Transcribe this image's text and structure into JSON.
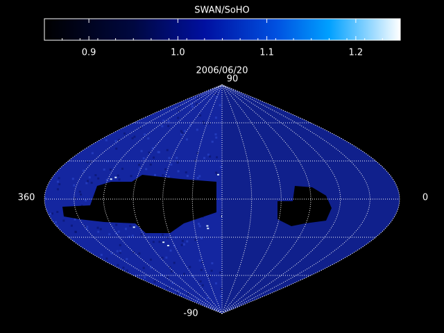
{
  "title": "SWAN/SoHO",
  "colorbar": {
    "lim": [
      0.85,
      1.25
    ],
    "ticks": [
      0.9,
      {
        "value": 1,
        "label": "1.0"
      },
      1.1,
      1.2
    ]
  },
  "date": "2006/06/20",
  "map_labels": {
    "top": "90",
    "bottom": "-90",
    "left": "360",
    "right": "0"
  }
}
